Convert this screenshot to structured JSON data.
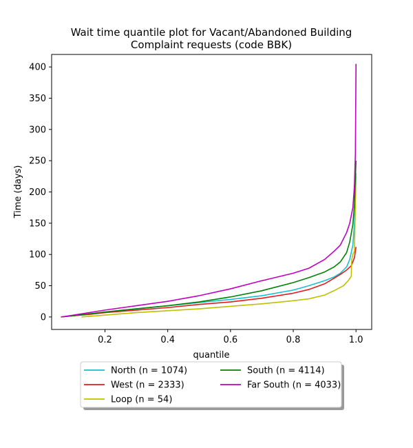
{
  "chart_data": {
    "type": "line",
    "title": "Wait time quantile plot for Vacant/Abandoned Building\nComplaint  requests (code BBK)",
    "xlabel": "quantile",
    "ylabel": "Time (days)",
    "xlim": [
      0.03,
      1.05
    ],
    "ylim": [
      -20,
      420
    ],
    "xticks": [
      0.2,
      0.4,
      0.6,
      0.8,
      1.0
    ],
    "xtick_labels": [
      "0.2",
      "0.4",
      "0.6",
      "0.8",
      "1.0"
    ],
    "yticks": [
      0,
      50,
      100,
      150,
      200,
      250,
      300,
      350,
      400
    ],
    "ytick_labels": [
      "0",
      "50",
      "100",
      "150",
      "200",
      "250",
      "300",
      "350",
      "400"
    ],
    "grid": false,
    "legend_position": "bottom-center",
    "series": [
      {
        "name": "North (n = 1074)",
        "color": "#17becf",
        "points": [
          [
            0.06,
            0
          ],
          [
            0.1,
            2
          ],
          [
            0.15,
            5
          ],
          [
            0.2,
            8
          ],
          [
            0.3,
            13
          ],
          [
            0.4,
            18
          ],
          [
            0.5,
            23
          ],
          [
            0.6,
            28
          ],
          [
            0.7,
            34
          ],
          [
            0.8,
            43
          ],
          [
            0.85,
            50
          ],
          [
            0.9,
            58
          ],
          [
            0.93,
            64
          ],
          [
            0.95,
            70
          ],
          [
            0.97,
            80
          ],
          [
            0.98,
            92
          ],
          [
            0.99,
            115
          ],
          [
            0.995,
            150
          ],
          [
            0.998,
            190
          ],
          [
            1.0,
            230
          ]
        ]
      },
      {
        "name": "West (n = 2333)",
        "color": "#e41a1c",
        "points": [
          [
            0.06,
            0
          ],
          [
            0.1,
            2
          ],
          [
            0.15,
            4
          ],
          [
            0.2,
            7
          ],
          [
            0.3,
            11
          ],
          [
            0.4,
            15
          ],
          [
            0.5,
            20
          ],
          [
            0.6,
            24
          ],
          [
            0.7,
            30
          ],
          [
            0.8,
            38
          ],
          [
            0.85,
            44
          ],
          [
            0.9,
            53
          ],
          [
            0.93,
            62
          ],
          [
            0.95,
            68
          ],
          [
            0.97,
            75
          ],
          [
            0.985,
            82
          ],
          [
            0.995,
            95
          ],
          [
            1.0,
            112
          ]
        ]
      },
      {
        "name": "Loop (n = 54)",
        "color": "#bfbf00",
        "points": [
          [
            0.125,
            0
          ],
          [
            0.2,
            3
          ],
          [
            0.3,
            7
          ],
          [
            0.4,
            10
          ],
          [
            0.5,
            13
          ],
          [
            0.6,
            17
          ],
          [
            0.7,
            21
          ],
          [
            0.8,
            26
          ],
          [
            0.85,
            29
          ],
          [
            0.9,
            35
          ],
          [
            0.93,
            42
          ],
          [
            0.96,
            50
          ],
          [
            0.975,
            58
          ],
          [
            0.985,
            65
          ],
          [
            0.986,
            90
          ],
          [
            0.99,
            100
          ],
          [
            0.995,
            105
          ],
          [
            1.0,
            230
          ]
        ]
      },
      {
        "name": "South (n = 4114)",
        "color": "#008000",
        "points": [
          [
            0.06,
            0
          ],
          [
            0.1,
            2
          ],
          [
            0.15,
            5
          ],
          [
            0.2,
            8
          ],
          [
            0.3,
            13
          ],
          [
            0.4,
            18
          ],
          [
            0.5,
            24
          ],
          [
            0.6,
            32
          ],
          [
            0.7,
            42
          ],
          [
            0.8,
            55
          ],
          [
            0.85,
            63
          ],
          [
            0.9,
            72
          ],
          [
            0.93,
            80
          ],
          [
            0.95,
            88
          ],
          [
            0.97,
            103
          ],
          [
            0.98,
            120
          ],
          [
            0.99,
            148
          ],
          [
            0.995,
            180
          ],
          [
            1.0,
            250
          ]
        ]
      },
      {
        "name": "Far South (n = 4033)",
        "color": "#bf00bf",
        "points": [
          [
            0.06,
            0
          ],
          [
            0.1,
            3
          ],
          [
            0.15,
            7
          ],
          [
            0.2,
            11
          ],
          [
            0.3,
            18
          ],
          [
            0.4,
            25
          ],
          [
            0.5,
            34
          ],
          [
            0.6,
            45
          ],
          [
            0.7,
            58
          ],
          [
            0.8,
            70
          ],
          [
            0.85,
            78
          ],
          [
            0.9,
            92
          ],
          [
            0.93,
            105
          ],
          [
            0.95,
            115
          ],
          [
            0.97,
            135
          ],
          [
            0.98,
            150
          ],
          [
            0.99,
            175
          ],
          [
            0.995,
            210
          ],
          [
            0.998,
            260
          ],
          [
            1.0,
            405
          ]
        ]
      }
    ]
  }
}
